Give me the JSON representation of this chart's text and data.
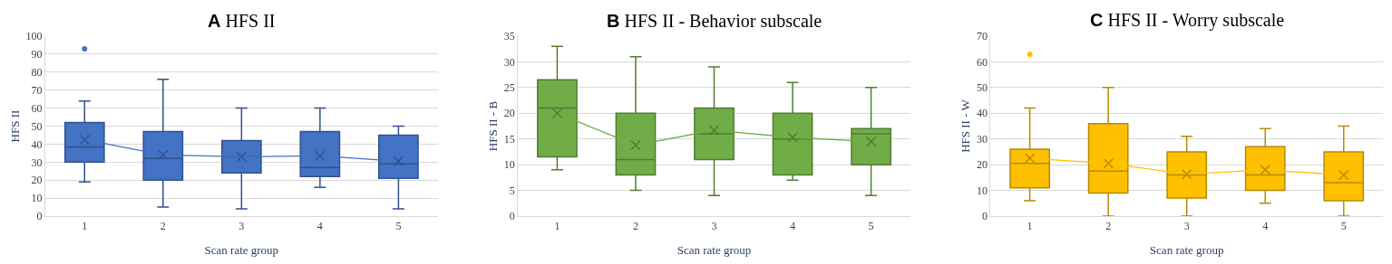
{
  "chart_data": [
    {
      "type": "box",
      "title": "A HFS II",
      "xlabel": "Scan rate group",
      "ylabel": "HFS II",
      "categories": [
        "1",
        "2",
        "3",
        "4",
        "5"
      ],
      "ylim": [
        0,
        100
      ],
      "yticks": [
        0,
        10,
        20,
        30,
        40,
        50,
        60,
        70,
        80,
        90,
        100
      ],
      "grid": "y",
      "marker": "cross",
      "series": [
        {
          "color": "#4472c4",
          "boxes": [
            {
              "low": 19,
              "q1": 30,
              "median": 38.5,
              "q3": 52,
              "high": 64,
              "outliers": [
                93
              ]
            },
            {
              "low": 5,
              "q1": 20,
              "median": 32,
              "q3": 47,
              "high": 76
            },
            {
              "low": 4,
              "q1": 24,
              "median": 33,
              "q3": 42,
              "high": 60
            },
            {
              "low": 16,
              "q1": 22,
              "median": 27,
              "q3": 47,
              "high": 60
            },
            {
              "low": 4,
              "q1": 21,
              "median": 29,
              "q3": 45,
              "high": 50
            }
          ]
        },
        {
          "type": "line",
          "color": "#4472c4",
          "values": [
            42.5,
            34,
            33,
            33.5,
            30.5
          ]
        }
      ]
    },
    {
      "type": "box",
      "title": "B HFS II - Behavior subscale",
      "xlabel": "Scan rate group",
      "ylabel": "HFS II - B",
      "categories": [
        "1",
        "2",
        "3",
        "4",
        "5"
      ],
      "ylim": [
        0,
        35
      ],
      "yticks": [
        0,
        5,
        10,
        15,
        20,
        25,
        30,
        35
      ],
      "grid": "y",
      "marker": "cross",
      "series": [
        {
          "color": "#70ad47",
          "boxes": [
            {
              "low": 9,
              "q1": 11.5,
              "median": 21,
              "q3": 26.5,
              "high": 33
            },
            {
              "low": 5,
              "q1": 8,
              "median": 11,
              "q3": 20,
              "high": 31
            },
            {
              "low": 4,
              "q1": 11,
              "median": 16,
              "q3": 21,
              "high": 29
            },
            {
              "low": 7,
              "q1": 8,
              "median": 15,
              "q3": 20,
              "high": 26
            },
            {
              "low": 4,
              "q1": 10,
              "median": 16,
              "q3": 17,
              "high": 25
            }
          ]
        },
        {
          "type": "line",
          "color": "#70ad47",
          "values": [
            20,
            13.8,
            16.7,
            15.3,
            14.5
          ]
        }
      ]
    },
    {
      "type": "box",
      "title": "C HFS II - Worry subscale",
      "xlabel": "Scan rate group",
      "ylabel": "HFS II - W",
      "categories": [
        "1",
        "2",
        "3",
        "4",
        "5"
      ],
      "ylim": [
        0,
        70
      ],
      "yticks": [
        0,
        10,
        20,
        30,
        40,
        50,
        60,
        70
      ],
      "grid": "y",
      "marker": "cross",
      "series": [
        {
          "color": "#ffc000",
          "boxes": [
            {
              "low": 6,
              "q1": 11,
              "median": 20.5,
              "q3": 26,
              "high": 42,
              "outliers": [
                63
              ]
            },
            {
              "low": 0,
              "q1": 9,
              "median": 17.5,
              "q3": 36,
              "high": 50
            },
            {
              "low": 0,
              "q1": 7,
              "median": 16,
              "q3": 25,
              "high": 31
            },
            {
              "low": 5,
              "q1": 10,
              "median": 16,
              "q3": 27,
              "high": 34
            },
            {
              "low": 0,
              "q1": 6,
              "median": 13,
              "q3": 25,
              "high": 35
            }
          ]
        },
        {
          "type": "line",
          "color": "#ffc000",
          "values": [
            22.5,
            20.5,
            16.3,
            18,
            16
          ]
        }
      ]
    }
  ]
}
